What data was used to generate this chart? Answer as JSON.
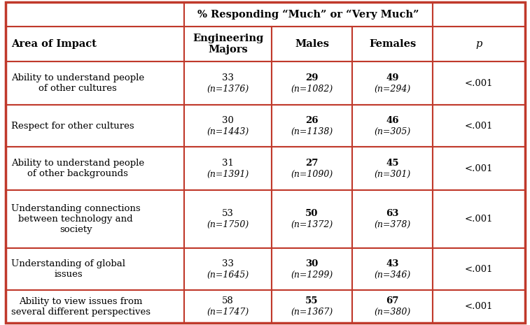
{
  "title_row": "% Responding “Much” or “Very Much”",
  "col0_header": "Area of Impact",
  "col_headers": [
    "Engineering\nMajors",
    "Males",
    "Females",
    "p"
  ],
  "rows": [
    {
      "area": "Ability to understand people\nof other cultures",
      "eng_num": "33",
      "eng_n": "(n=1376)",
      "males_num": "29",
      "males_n": "(n=1082)",
      "fem_num": "49",
      "fem_n": "(n=294)",
      "p": "<.001"
    },
    {
      "area": "Respect for other cultures",
      "eng_num": "30",
      "eng_n": "(n=1443)",
      "males_num": "26",
      "males_n": "(n=1138)",
      "fem_num": "46",
      "fem_n": "(n=305)",
      "p": "<.001"
    },
    {
      "area": "Ability to understand people\nof other backgrounds",
      "eng_num": "31",
      "eng_n": "(n=1391)",
      "males_num": "27",
      "males_n": "(n=1090)",
      "fem_num": "45",
      "fem_n": "(n=301)",
      "p": "<.001"
    },
    {
      "area": "Understanding connections\nbetween technology and\nsociety",
      "eng_num": "53",
      "eng_n": "(n=1750)",
      "males_num": "50",
      "males_n": "(n=1372)",
      "fem_num": "63",
      "fem_n": "(n=378)",
      "p": "<.001"
    },
    {
      "area": "Understanding of global\nissues",
      "eng_num": "33",
      "eng_n": "(n=1645)",
      "males_num": "30",
      "males_n": "(n=1299)",
      "fem_num": "43",
      "fem_n": "(n=346)",
      "p": "<.001"
    },
    {
      "area": "Ability to view issues from\nseveral different perspectives",
      "eng_num": "58",
      "eng_n": "(n=1747)",
      "males_num": "55",
      "males_n": "(n=1367)",
      "fem_num": "67",
      "fem_n": "(n=380)",
      "p": "<.001"
    }
  ],
  "border_color": "#c0392b",
  "text_color": "#000000",
  "fig_width": 7.57,
  "fig_height": 4.65,
  "dpi": 100
}
